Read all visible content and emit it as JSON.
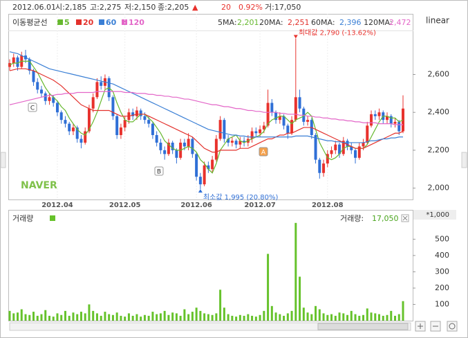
{
  "header": {
    "items": [
      "2012.06.01",
      "시:2,185",
      "고:2,275",
      "저:2,150",
      "종:2,205",
      "▲",
      "20",
      "0.92%",
      "거:17,050"
    ],
    "scale": "linear",
    "watermark": "NAVER"
  },
  "chart_data": [
    {
      "type": "candlestick",
      "ma_title": "이동평균선",
      "categories": [
        null,
        null,
        null,
        null,
        null,
        null,
        null,
        null,
        null,
        null,
        null,
        null,
        "2012.04",
        null,
        null,
        null,
        null,
        null,
        null,
        null,
        null,
        null,
        null,
        null,
        null,
        null,
        null,
        null,
        null,
        "2012.05",
        null,
        null,
        null,
        null,
        null,
        null,
        null,
        null,
        null,
        null,
        null,
        null,
        null,
        null,
        null,
        null,
        null,
        "2012.06",
        null,
        null,
        null,
        null,
        null,
        null,
        null,
        null,
        null,
        null,
        null,
        null,
        null,
        null,
        null,
        "2012.07",
        null,
        null,
        null,
        null,
        null,
        null,
        null,
        null,
        null,
        null,
        null,
        null,
        null,
        null,
        null,
        null,
        "2012.08",
        null,
        null,
        null,
        null,
        null,
        null,
        null,
        null,
        null,
        null,
        null,
        null,
        null,
        null,
        null,
        null,
        null,
        null,
        null
      ],
      "open": [
        2640,
        2660,
        2690,
        2640,
        2700,
        2680,
        2620,
        2560,
        2520,
        2500,
        2460,
        2480,
        2450,
        2400,
        2360,
        2340,
        2300,
        2320,
        2260,
        2240,
        2300,
        2420,
        2480,
        2560,
        2540,
        2580,
        2480,
        2380,
        2280,
        2320,
        2360,
        2400,
        2380,
        2410,
        2380,
        2360,
        2340,
        2280,
        2240,
        2200,
        2180,
        2240,
        2200,
        2160,
        2240,
        2220,
        2260,
        2180,
        2060,
        2020,
        2120,
        2100,
        2150,
        2260,
        2360,
        2260,
        2240,
        2250,
        2230,
        2250,
        2240,
        2260,
        2300,
        2290,
        2310,
        2330,
        2450,
        2400,
        2360,
        2380,
        2330,
        2290,
        2360,
        2480,
        2420,
        2350,
        2360,
        2280,
        2150,
        2080,
        2130,
        2180,
        2200,
        2230,
        2180,
        2250,
        2220,
        2200,
        2160,
        2220,
        2240,
        2330,
        2390,
        2380,
        2400,
        2360,
        2380,
        2340,
        2350,
        2300
      ],
      "high": [
        2680,
        2710,
        2700,
        2720,
        2730,
        2690,
        2630,
        2580,
        2540,
        2510,
        2500,
        2490,
        2460,
        2410,
        2380,
        2350,
        2340,
        2330,
        2280,
        2320,
        2440,
        2500,
        2580,
        2590,
        2600,
        2590,
        2490,
        2390,
        2340,
        2380,
        2420,
        2420,
        2430,
        2420,
        2400,
        2380,
        2350,
        2300,
        2260,
        2220,
        2260,
        2250,
        2210,
        2260,
        2260,
        2290,
        2270,
        2190,
        2080,
        2140,
        2140,
        2170,
        2280,
        2380,
        2370,
        2280,
        2270,
        2260,
        2270,
        2270,
        2280,
        2320,
        2320,
        2330,
        2350,
        2520,
        2470,
        2410,
        2400,
        2390,
        2340,
        2380,
        2790,
        2520,
        2430,
        2380,
        2370,
        2290,
        2160,
        2150,
        2200,
        2220,
        2250,
        2240,
        2270,
        2260,
        2240,
        2210,
        2240,
        2260,
        2350,
        2410,
        2410,
        2420,
        2410,
        2400,
        2390,
        2370,
        2360,
        2490
      ],
      "low": [
        2620,
        2640,
        2620,
        2630,
        2660,
        2600,
        2540,
        2500,
        2480,
        2440,
        2440,
        2430,
        2380,
        2340,
        2320,
        2280,
        2280,
        2240,
        2210,
        2230,
        2290,
        2400,
        2470,
        2520,
        2520,
        2460,
        2360,
        2260,
        2260,
        2300,
        2340,
        2360,
        2360,
        2360,
        2340,
        2320,
        2260,
        2220,
        2180,
        2150,
        2170,
        2180,
        2130,
        2150,
        2200,
        2200,
        2160,
        2040,
        1995,
        2010,
        2080,
        2080,
        2140,
        2250,
        2240,
        2220,
        2220,
        2210,
        2210,
        2220,
        2220,
        2240,
        2270,
        2270,
        2290,
        2320,
        2380,
        2340,
        2340,
        2310,
        2260,
        2280,
        2350,
        2400,
        2330,
        2330,
        2260,
        2130,
        2050,
        2060,
        2110,
        2160,
        2180,
        2160,
        2170,
        2200,
        2180,
        2130,
        2150,
        2200,
        2230,
        2320,
        2360,
        2360,
        2340,
        2340,
        2320,
        2320,
        2280,
        2290
      ],
      "close": [
        2660,
        2690,
        2640,
        2700,
        2680,
        2620,
        2560,
        2520,
        2500,
        2460,
        2480,
        2450,
        2400,
        2360,
        2340,
        2300,
        2320,
        2260,
        2240,
        2300,
        2420,
        2480,
        2560,
        2540,
        2580,
        2480,
        2380,
        2280,
        2320,
        2360,
        2400,
        2380,
        2410,
        2380,
        2360,
        2340,
        2280,
        2240,
        2200,
        2180,
        2240,
        2200,
        2160,
        2240,
        2220,
        2260,
        2180,
        2060,
        2020,
        2120,
        2100,
        2150,
        2260,
        2360,
        2260,
        2240,
        2250,
        2230,
        2250,
        2240,
        2260,
        2300,
        2290,
        2310,
        2330,
        2450,
        2400,
        2360,
        2380,
        2330,
        2290,
        2360,
        2480,
        2420,
        2350,
        2360,
        2280,
        2150,
        2080,
        2130,
        2180,
        2200,
        2230,
        2180,
        2250,
        2220,
        2200,
        2160,
        2220,
        2240,
        2330,
        2390,
        2380,
        2400,
        2360,
        2380,
        2340,
        2350,
        2300,
        2420
      ],
      "up_color": "#e8322d",
      "down_color": "#2f6fd6",
      "series": [
        {
          "name": "5",
          "color": "#66b82e",
          "values": [
            2650,
            2660,
            2660,
            2670,
            2670,
            2670,
            2640,
            2610,
            2570,
            2530,
            2500,
            2480,
            2460,
            2430,
            2410,
            2370,
            2340,
            2310,
            2290,
            2280,
            2310,
            2350,
            2400,
            2460,
            2520,
            2530,
            2510,
            2450,
            2400,
            2360,
            2350,
            2350,
            2370,
            2390,
            2390,
            2370,
            2350,
            2320,
            2290,
            2250,
            2230,
            2210,
            2200,
            2200,
            2210,
            2220,
            2210,
            2190,
            2150,
            2130,
            2100,
            2080,
            2130,
            2200,
            2230,
            2260,
            2270,
            2280,
            2250,
            2240,
            2250,
            2260,
            2270,
            2280,
            2300,
            2340,
            2360,
            2370,
            2380,
            2380,
            2360,
            2340,
            2360,
            2370,
            2380,
            2400,
            2380,
            2310,
            2240,
            2200,
            2160,
            2150,
            2160,
            2180,
            2210,
            2220,
            2220,
            2210,
            2210,
            2210,
            2230,
            2270,
            2310,
            2350,
            2380,
            2380,
            2370,
            2370,
            2350,
            2360
          ]
        },
        {
          "name": "20",
          "color": "#e3312c",
          "values": [
            2620,
            2625,
            2630,
            2630,
            2630,
            2625,
            2620,
            2610,
            2600,
            2590,
            2580,
            2570,
            2555,
            2540,
            2520,
            2500,
            2480,
            2460,
            2440,
            2430,
            2420,
            2410,
            2410,
            2410,
            2410,
            2410,
            2400,
            2390,
            2380,
            2380,
            2380,
            2385,
            2390,
            2390,
            2390,
            2380,
            2370,
            2360,
            2350,
            2340,
            2330,
            2320,
            2310,
            2300,
            2290,
            2280,
            2270,
            2250,
            2230,
            2210,
            2200,
            2190,
            2190,
            2200,
            2200,
            2200,
            2200,
            2200,
            2210,
            2210,
            2210,
            2220,
            2230,
            2240,
            2250,
            2260,
            2260,
            2270,
            2280,
            2280,
            2290,
            2290,
            2300,
            2310,
            2320,
            2320,
            2320,
            2310,
            2300,
            2290,
            2280,
            2270,
            2260,
            2250,
            2240,
            2230,
            2220,
            2210,
            2210,
            2210,
            2220,
            2230,
            2240,
            2250,
            2260,
            2270,
            2280,
            2290,
            2290,
            2300
          ]
        },
        {
          "name": "60",
          "color": "#3a7fd5",
          "values": [
            2720,
            2715,
            2710,
            2700,
            2690,
            2680,
            2670,
            2660,
            2650,
            2640,
            2630,
            2625,
            2620,
            2615,
            2610,
            2605,
            2600,
            2595,
            2590,
            2585,
            2580,
            2575,
            2570,
            2565,
            2560,
            2555,
            2550,
            2540,
            2530,
            2520,
            2510,
            2500,
            2490,
            2480,
            2470,
            2460,
            2450,
            2440,
            2430,
            2420,
            2410,
            2400,
            2390,
            2380,
            2370,
            2360,
            2350,
            2340,
            2330,
            2320,
            2310,
            2305,
            2300,
            2295,
            2290,
            2285,
            2280,
            2280,
            2275,
            2275,
            2270,
            2270,
            2270,
            2270,
            2270,
            2270,
            2270,
            2270,
            2270,
            2270,
            2270,
            2270,
            2275,
            2275,
            2275,
            2275,
            2270,
            2265,
            2260,
            2255,
            2250,
            2250,
            2245,
            2245,
            2240,
            2240,
            2240,
            2240,
            2240,
            2240,
            2245,
            2250,
            2250,
            2255,
            2260,
            2260,
            2265,
            2265,
            2270,
            2270
          ]
        },
        {
          "name": "120",
          "color": "#e366c8",
          "values": [
            2440,
            2445,
            2450,
            2455,
            2460,
            2465,
            2470,
            2475,
            2480,
            2485,
            2490,
            2490,
            2495,
            2495,
            2500,
            2500,
            2500,
            2505,
            2505,
            2505,
            2505,
            2505,
            2510,
            2510,
            2510,
            2510,
            2510,
            2510,
            2510,
            2505,
            2505,
            2505,
            2500,
            2500,
            2500,
            2495,
            2495,
            2490,
            2490,
            2485,
            2485,
            2480,
            2480,
            2475,
            2470,
            2470,
            2465,
            2460,
            2455,
            2450,
            2445,
            2440,
            2440,
            2435,
            2430,
            2430,
            2425,
            2420,
            2420,
            2415,
            2410,
            2410,
            2405,
            2405,
            2400,
            2400,
            2400,
            2400,
            2395,
            2395,
            2390,
            2390,
            2390,
            2385,
            2385,
            2380,
            2380,
            2375,
            2375,
            2370,
            2370,
            2365,
            2365,
            2360,
            2360,
            2355,
            2355,
            2350,
            2350,
            2345,
            2345,
            2345,
            2345,
            2340,
            2340,
            2340,
            2340,
            2335,
            2335,
            2335
          ]
        }
      ],
      "ma_readout": [
        {
          "label": "5MA:",
          "value": "2,201"
        },
        {
          "label": "20MA:",
          "value": "2,251"
        },
        {
          "label": "60MA:",
          "value": "2,396"
        },
        {
          "label": "120MA:",
          "value": "2,472"
        }
      ],
      "annotations": {
        "max": "최대값 2,790 (-13.62%)",
        "min": "최소값 1,995 (20.80%)",
        "markers": [
          "C",
          "B",
          "A"
        ]
      },
      "ylim": [
        1940,
        2920
      ],
      "yticks": [
        {
          "value": 2000,
          "label": "2,000"
        },
        {
          "value": 2200,
          "label": "2,200"
        },
        {
          "value": 2400,
          "label": "2,400"
        },
        {
          "value": 2600,
          "label": "2,600"
        }
      ]
    },
    {
      "type": "bar",
      "title": "거래량",
      "color": "#66c22b",
      "unit_label": "*1,000",
      "readout_label": "거래량:",
      "readout_value": "17,050",
      "values": [
        60,
        45,
        50,
        70,
        40,
        35,
        55,
        30,
        40,
        65,
        30,
        25,
        45,
        35,
        60,
        30,
        50,
        40,
        55,
        45,
        100,
        60,
        45,
        30,
        55,
        40,
        35,
        50,
        30,
        25,
        45,
        30,
        40,
        25,
        35,
        30,
        55,
        40,
        45,
        60,
        35,
        50,
        45,
        30,
        70,
        40,
        55,
        80,
        60,
        45,
        40,
        35,
        45,
        190,
        80,
        40,
        30,
        25,
        35,
        30,
        40,
        30,
        25,
        35,
        60,
        410,
        90,
        50,
        40,
        30,
        45,
        60,
        600,
        270,
        80,
        50,
        40,
        90,
        70,
        45,
        35,
        40,
        30,
        50,
        45,
        35,
        60,
        40,
        30,
        35,
        75,
        50,
        45,
        40,
        30,
        35,
        60,
        30,
        40,
        120
      ],
      "ylim": [
        0,
        680
      ],
      "yticks": [
        100,
        200,
        300,
        400,
        500
      ]
    }
  ]
}
